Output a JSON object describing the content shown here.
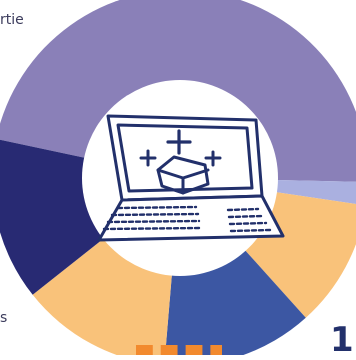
{
  "text": {
    "fragment_top": "rtie",
    "fragment_bottom": "s",
    "number_bottom_right": "1"
  },
  "icons": {
    "center": "laptop-with-sparkles-and-box-icon"
  },
  "colors": {
    "lavender": "#8a80b8",
    "light_purple": "#aab0e0",
    "peach": "#f9c27a",
    "blue": "#3c57a3",
    "navy": "#282a73",
    "white": "#ffffff",
    "icon_stroke": "#22306b",
    "orange_text": "#f28a2e"
  },
  "chart_data": {
    "type": "pie",
    "segments": [
      {
        "color": "#8a80b8",
        "value": 47
      },
      {
        "color": "#aab0e0",
        "value": 2
      },
      {
        "color": "#f9c27a",
        "value": 11
      },
      {
        "color": "#3c57a3",
        "value": 13
      },
      {
        "color": "#f9c27a",
        "value": 13
      },
      {
        "color": "#282a73",
        "value": 14
      }
    ]
  }
}
